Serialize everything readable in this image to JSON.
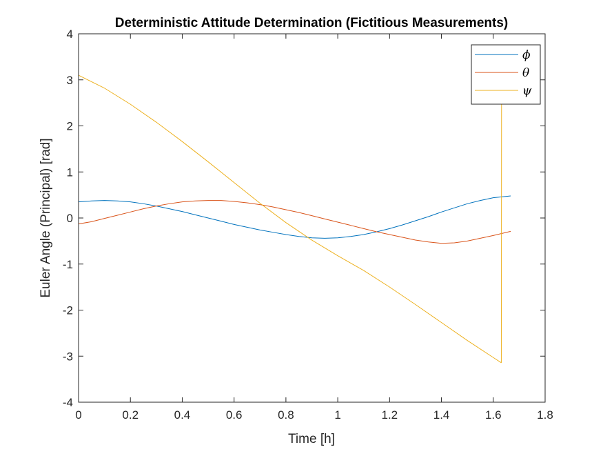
{
  "chart_data": {
    "type": "line",
    "title": "Deterministic Attitude Determination (Fictitious Measurements)",
    "xlabel": "Time [h]",
    "ylabel": "Euler Angle (Principal) [rad]",
    "xlim": [
      0,
      1.8
    ],
    "ylim": [
      -4,
      4
    ],
    "xticks": [
      0,
      0.2,
      0.4,
      0.6,
      0.8,
      1,
      1.2,
      1.4,
      1.6,
      1.8
    ],
    "xtick_labels": [
      "0",
      "0.2",
      "0.4",
      "0.6",
      "0.8",
      "1",
      "1.2",
      "1.4",
      "1.6",
      "1.8"
    ],
    "yticks": [
      -4,
      -3,
      -2,
      -1,
      0,
      1,
      2,
      3,
      4
    ],
    "ytick_labels": [
      "-4",
      "-3",
      "-2",
      "-1",
      "0",
      "1",
      "2",
      "3",
      "4"
    ],
    "grid": false,
    "legend_position": "top-right",
    "series": [
      {
        "name": "ϕ",
        "color": "#0072BD",
        "x": [
          0,
          0.05,
          0.1,
          0.15,
          0.2,
          0.25,
          0.3,
          0.35,
          0.4,
          0.45,
          0.5,
          0.55,
          0.6,
          0.65,
          0.7,
          0.75,
          0.8,
          0.85,
          0.9,
          0.95,
          1.0,
          1.05,
          1.1,
          1.15,
          1.2,
          1.25,
          1.3,
          1.35,
          1.4,
          1.45,
          1.5,
          1.55,
          1.6,
          1.667
        ],
        "y": [
          0.35,
          0.37,
          0.38,
          0.37,
          0.35,
          0.31,
          0.26,
          0.2,
          0.14,
          0.07,
          0.0,
          -0.07,
          -0.14,
          -0.2,
          -0.26,
          -0.31,
          -0.36,
          -0.4,
          -0.43,
          -0.44,
          -0.43,
          -0.4,
          -0.36,
          -0.3,
          -0.23,
          -0.15,
          -0.06,
          0.03,
          0.13,
          0.22,
          0.31,
          0.38,
          0.44,
          0.48
        ]
      },
      {
        "name": "θ",
        "color": "#D95319",
        "x": [
          0,
          0.05,
          0.1,
          0.15,
          0.2,
          0.25,
          0.3,
          0.35,
          0.4,
          0.45,
          0.5,
          0.55,
          0.6,
          0.65,
          0.7,
          0.75,
          0.8,
          0.85,
          0.9,
          0.95,
          1.0,
          1.05,
          1.1,
          1.15,
          1.2,
          1.25,
          1.3,
          1.35,
          1.4,
          1.45,
          1.5,
          1.55,
          1.6,
          1.667
        ],
        "y": [
          -0.13,
          -0.08,
          -0.01,
          0.06,
          0.13,
          0.2,
          0.26,
          0.31,
          0.35,
          0.37,
          0.38,
          0.38,
          0.36,
          0.33,
          0.29,
          0.24,
          0.18,
          0.12,
          0.05,
          -0.02,
          -0.09,
          -0.16,
          -0.23,
          -0.3,
          -0.36,
          -0.42,
          -0.48,
          -0.52,
          -0.55,
          -0.54,
          -0.5,
          -0.44,
          -0.38,
          -0.29
        ]
      },
      {
        "name": "ψ",
        "color": "#EDB120",
        "x": [
          0,
          0.1,
          0.2,
          0.3,
          0.4,
          0.5,
          0.6,
          0.7,
          0.8,
          0.9,
          1.0,
          1.1,
          1.2,
          1.3,
          1.4,
          1.5,
          1.6,
          1.63,
          1.631,
          1.632,
          1.667
        ],
        "y": [
          3.1,
          2.82,
          2.47,
          2.08,
          1.66,
          1.22,
          0.77,
          0.32,
          -0.1,
          -0.48,
          -0.82,
          -1.14,
          -1.5,
          -1.88,
          -2.27,
          -2.66,
          -3.03,
          -3.14,
          -3.14,
          3.14,
          3.14
        ]
      }
    ]
  }
}
